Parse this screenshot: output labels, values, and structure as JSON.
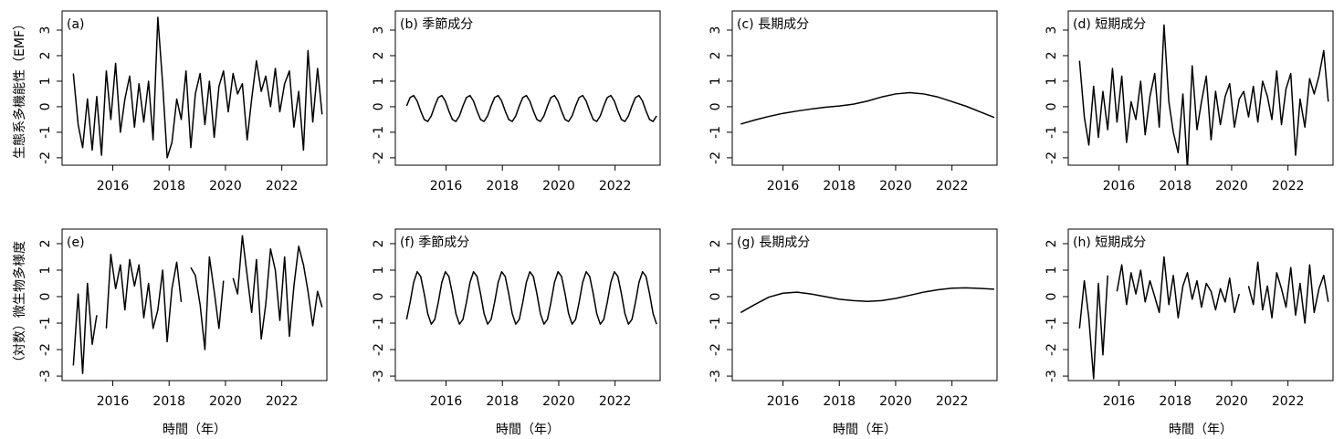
{
  "chart_data": [
    {
      "type": "line",
      "title": "(a)",
      "ylabel": "生態系多機能性（EMF）",
      "x": [
        2014.6,
        2014.77,
        2014.93,
        2015.1,
        2015.27,
        2015.43,
        2015.6,
        2015.77,
        2015.93,
        2016.1,
        2016.27,
        2016.43,
        2016.6,
        2016.77,
        2016.93,
        2017.1,
        2017.27,
        2017.43,
        2017.6,
        2017.77,
        2017.93,
        2018.1,
        2018.27,
        2018.43,
        2018.6,
        2018.77,
        2018.93,
        2019.1,
        2019.27,
        2019.43,
        2019.6,
        2019.77,
        2019.93,
        2020.1,
        2020.27,
        2020.43,
        2020.6,
        2020.77,
        2020.93,
        2021.1,
        2021.27,
        2021.43,
        2021.6,
        2021.77,
        2021.93,
        2022.1,
        2022.27,
        2022.43,
        2022.6,
        2022.77,
        2022.93,
        2023.1,
        2023.27,
        2023.43
      ],
      "values": [
        1.3,
        -0.7,
        -1.6,
        0.3,
        -1.7,
        0.4,
        -1.9,
        1.4,
        -0.5,
        1.7,
        -1.0,
        0.3,
        1.2,
        -0.8,
        0.9,
        -0.6,
        1.0,
        -1.3,
        3.5,
        0.9,
        -2.0,
        -1.4,
        0.3,
        -0.5,
        1.4,
        -1.6,
        0.5,
        1.3,
        -0.7,
        1.0,
        -1.2,
        0.8,
        1.4,
        -0.2,
        1.3,
        0.5,
        0.9,
        -1.3,
        0.3,
        1.8,
        0.6,
        1.2,
        0.0,
        1.5,
        -0.2,
        0.9,
        1.4,
        -0.8,
        0.6,
        -1.7,
        2.2,
        -0.6,
        1.5,
        -0.3
      ],
      "color": "#000000",
      "xlim": [
        2014.2,
        2023.6
      ],
      "ylim": [
        -2.29,
        3.75
      ],
      "xticks": [
        2016,
        2018,
        2020,
        2022
      ],
      "yticks": [
        -2,
        -1,
        0,
        1,
        2,
        3
      ]
    },
    {
      "type": "line",
      "title": "(b) 季節成分",
      "x": [
        2014.6,
        2014.725,
        2014.85,
        2014.975,
        2015.1,
        2015.225,
        2015.35,
        2015.475,
        2015.6,
        2015.725,
        2015.85,
        2015.975,
        2016.1,
        2016.225,
        2016.35,
        2016.475,
        2016.6,
        2016.725,
        2016.85,
        2016.975,
        2017.1,
        2017.225,
        2017.35,
        2017.475,
        2017.6,
        2017.725,
        2017.85,
        2017.975,
        2018.1,
        2018.225,
        2018.35,
        2018.475,
        2018.6,
        2018.725,
        2018.85,
        2018.975,
        2019.1,
        2019.225,
        2019.35,
        2019.475,
        2019.6,
        2019.725,
        2019.85,
        2019.975,
        2020.1,
        2020.225,
        2020.35,
        2020.475,
        2020.6,
        2020.725,
        2020.85,
        2020.975,
        2021.1,
        2021.225,
        2021.35,
        2021.475,
        2021.6,
        2021.725,
        2021.85,
        2021.975,
        2022.1,
        2022.225,
        2022.35,
        2022.475,
        2022.6,
        2022.725,
        2022.85,
        2022.975,
        2023.1,
        2023.225,
        2023.35,
        2023.475
      ],
      "values": [
        0.03,
        0.36,
        0.44,
        0.22,
        -0.17,
        -0.5,
        -0.58,
        -0.36,
        0.03,
        0.36,
        0.44,
        0.22,
        -0.17,
        -0.5,
        -0.58,
        -0.36,
        0.03,
        0.36,
        0.44,
        0.22,
        -0.17,
        -0.5,
        -0.58,
        -0.36,
        0.03,
        0.36,
        0.44,
        0.22,
        -0.17,
        -0.5,
        -0.58,
        -0.36,
        0.03,
        0.36,
        0.44,
        0.22,
        -0.17,
        -0.5,
        -0.58,
        -0.36,
        0.03,
        0.36,
        0.44,
        0.22,
        -0.17,
        -0.5,
        -0.58,
        -0.36,
        0.03,
        0.36,
        0.44,
        0.22,
        -0.17,
        -0.5,
        -0.58,
        -0.36,
        0.03,
        0.36,
        0.44,
        0.22,
        -0.17,
        -0.5,
        -0.58,
        -0.36,
        0.03,
        0.36,
        0.44,
        0.22,
        -0.17,
        -0.5,
        -0.58,
        -0.36
      ],
      "color": "#000000",
      "xlim": [
        2014.2,
        2023.6
      ],
      "ylim": [
        -2.29,
        3.75
      ],
      "xticks": [
        2016,
        2018,
        2020,
        2022
      ],
      "yticks": [
        -2,
        -1,
        0,
        1,
        2,
        3
      ]
    },
    {
      "type": "line",
      "title": "(c) 長期成分",
      "x": [
        2014.5,
        2015,
        2015.5,
        2016,
        2016.5,
        2017,
        2017.5,
        2018,
        2018.5,
        2019,
        2019.5,
        2020,
        2020.5,
        2021,
        2021.5,
        2022,
        2022.5,
        2023,
        2023.5
      ],
      "values": [
        -0.68,
        -0.52,
        -0.38,
        -0.26,
        -0.17,
        -0.09,
        -0.02,
        0.03,
        0.1,
        0.22,
        0.38,
        0.5,
        0.55,
        0.5,
        0.38,
        0.2,
        0.02,
        -0.2,
        -0.42
      ],
      "color": "#000000",
      "xlim": [
        2014.2,
        2023.6
      ],
      "ylim": [
        -2.29,
        3.75
      ],
      "xticks": [
        2016,
        2018,
        2020,
        2022
      ],
      "yticks": [
        -2,
        -1,
        0,
        1,
        2,
        3
      ]
    },
    {
      "type": "line",
      "title": "(d) 短期成分",
      "x": [
        2014.6,
        2014.77,
        2014.93,
        2015.1,
        2015.27,
        2015.43,
        2015.6,
        2015.77,
        2015.93,
        2016.1,
        2016.27,
        2016.43,
        2016.6,
        2016.77,
        2016.93,
        2017.1,
        2017.27,
        2017.43,
        2017.6,
        2017.77,
        2017.93,
        2018.1,
        2018.27,
        2018.43,
        2018.6,
        2018.77,
        2018.93,
        2019.1,
        2019.27,
        2019.43,
        2019.6,
        2019.77,
        2019.93,
        2020.1,
        2020.27,
        2020.43,
        2020.6,
        2020.77,
        2020.93,
        2021.1,
        2021.27,
        2021.43,
        2021.6,
        2021.77,
        2021.93,
        2022.1,
        2022.27,
        2022.43,
        2022.6,
        2022.77,
        2022.93,
        2023.1,
        2023.27,
        2023.43
      ],
      "values": [
        1.8,
        -0.4,
        -1.5,
        0.8,
        -1.2,
        0.6,
        -0.9,
        1.5,
        -0.6,
        1.2,
        -1.4,
        0.2,
        -0.5,
        1.0,
        -1.1,
        0.4,
        1.3,
        -0.8,
        3.2,
        0.2,
        -1.0,
        -1.8,
        0.5,
        -2.4,
        1.6,
        -0.9,
        0.2,
        1.2,
        -1.3,
        0.6,
        -0.7,
        0.4,
        0.9,
        -0.8,
        0.3,
        0.6,
        -0.4,
        0.8,
        -0.6,
        1.0,
        0.4,
        -0.5,
        1.4,
        -0.7,
        0.7,
        1.3,
        -1.9,
        0.3,
        -0.8,
        1.1,
        0.5,
        1.2,
        2.2,
        0.2
      ],
      "color": "#000000",
      "xlim": [
        2014.2,
        2023.6
      ],
      "ylim": [
        -2.29,
        3.75
      ],
      "xticks": [
        2016,
        2018,
        2020,
        2022
      ],
      "yticks": [
        -2,
        -1,
        0,
        1,
        2,
        3
      ]
    },
    {
      "type": "line",
      "title": "(e)",
      "ylabel": "（対数）微生物多様度",
      "xlabel": "時間（年）",
      "x": [
        2014.6,
        2014.77,
        2014.93,
        2015.1,
        2015.27,
        2015.43,
        2015.6,
        2015.77,
        2015.93,
        2016.1,
        2016.27,
        2016.43,
        2016.6,
        2016.77,
        2016.93,
        2017.1,
        2017.27,
        2017.43,
        2017.6,
        2017.77,
        2017.93,
        2018.1,
        2018.27,
        2018.43,
        2018.6,
        2018.77,
        2018.93,
        2019.1,
        2019.27,
        2019.43,
        2019.6,
        2019.77,
        2019.93,
        2020.1,
        2020.27,
        2020.43,
        2020.6,
        2020.77,
        2020.93,
        2021.1,
        2021.27,
        2021.43,
        2021.6,
        2021.77,
        2021.93,
        2022.1,
        2022.27,
        2022.43,
        2022.6,
        2022.77,
        2022.93,
        2023.1,
        2023.27,
        2023.43
      ],
      "values": [
        -2.6,
        0.1,
        -2.9,
        0.5,
        -1.8,
        -0.7,
        null,
        -1.2,
        1.6,
        0.3,
        1.2,
        -0.5,
        1.4,
        0.4,
        1.2,
        -0.8,
        0.5,
        -1.2,
        -0.5,
        1.0,
        -1.7,
        0.3,
        1.3,
        -0.2,
        null,
        1.1,
        0.8,
        -0.3,
        -2.0,
        1.5,
        0.2,
        -1.2,
        0.6,
        null,
        0.7,
        0.1,
        2.3,
        0.8,
        -0.6,
        1.4,
        -1.6,
        -0.3,
        1.8,
        1.0,
        -0.9,
        1.5,
        -1.5,
        0.4,
        1.9,
        1.2,
        0.2,
        -1.1,
        0.2,
        -0.4
      ],
      "color": "#000000",
      "xlim": [
        2014.2,
        2023.6
      ],
      "ylim": [
        -3.17,
        2.55
      ],
      "xticks": [
        2016,
        2018,
        2020,
        2022
      ],
      "yticks": [
        -3,
        -2,
        -1,
        0,
        1,
        2
      ]
    },
    {
      "type": "line",
      "title": "(f) 季節成分",
      "xlabel": "時間（年）",
      "x": [
        2014.6,
        2014.725,
        2014.85,
        2014.975,
        2015.1,
        2015.225,
        2015.35,
        2015.475,
        2015.6,
        2015.725,
        2015.85,
        2015.975,
        2016.1,
        2016.225,
        2016.35,
        2016.475,
        2016.6,
        2016.725,
        2016.85,
        2016.975,
        2017.1,
        2017.225,
        2017.35,
        2017.475,
        2017.6,
        2017.725,
        2017.85,
        2017.975,
        2018.1,
        2018.225,
        2018.35,
        2018.475,
        2018.6,
        2018.725,
        2018.85,
        2018.975,
        2019.1,
        2019.225,
        2019.35,
        2019.475,
        2019.6,
        2019.725,
        2019.85,
        2019.975,
        2020.1,
        2020.225,
        2020.35,
        2020.475,
        2020.6,
        2020.725,
        2020.85,
        2020.975,
        2021.1,
        2021.225,
        2021.35,
        2021.475,
        2021.6,
        2021.725,
        2021.85,
        2021.975,
        2022.1,
        2022.225,
        2022.35,
        2022.475,
        2022.6,
        2022.725,
        2022.85,
        2022.975,
        2023.1,
        2023.225,
        2023.35,
        2023.475
      ],
      "values": [
        -0.86,
        -0.21,
        0.54,
        0.94,
        0.76,
        0.11,
        -0.64,
        -1.04,
        -0.86,
        -0.21,
        0.54,
        0.94,
        0.76,
        0.11,
        -0.64,
        -1.04,
        -0.86,
        -0.21,
        0.54,
        0.94,
        0.76,
        0.11,
        -0.64,
        -1.04,
        -0.86,
        -0.21,
        0.54,
        0.94,
        0.76,
        0.11,
        -0.64,
        -1.04,
        -0.86,
        -0.21,
        0.54,
        0.94,
        0.76,
        0.11,
        -0.64,
        -1.04,
        -0.86,
        -0.21,
        0.54,
        0.94,
        0.76,
        0.11,
        -0.64,
        -1.04,
        -0.86,
        -0.21,
        0.54,
        0.94,
        0.76,
        0.11,
        -0.64,
        -1.04,
        -0.86,
        -0.21,
        0.54,
        0.94,
        0.76,
        0.11,
        -0.64,
        -1.04,
        -0.86,
        -0.21,
        0.54,
        0.94,
        0.76,
        0.11,
        -0.64,
        -1.04
      ],
      "color": "#000000",
      "xlim": [
        2014.2,
        2023.6
      ],
      "ylim": [
        -3.17,
        2.55
      ],
      "xticks": [
        2016,
        2018,
        2020,
        2022
      ],
      "yticks": [
        -3,
        -2,
        -1,
        0,
        1,
        2
      ]
    },
    {
      "type": "line",
      "title": "(g) 長期成分",
      "xlabel": "時間（年）",
      "x": [
        2014.5,
        2015,
        2015.5,
        2016,
        2016.5,
        2017,
        2017.5,
        2018,
        2018.5,
        2019,
        2019.5,
        2020,
        2020.5,
        2021,
        2021.5,
        2022,
        2022.5,
        2023,
        2023.5
      ],
      "values": [
        -0.6,
        -0.3,
        -0.02,
        0.13,
        0.17,
        0.1,
        0.0,
        -0.1,
        -0.15,
        -0.18,
        -0.15,
        -0.07,
        0.05,
        0.17,
        0.26,
        0.32,
        0.33,
        0.31,
        0.28
      ],
      "color": "#000000",
      "xlim": [
        2014.2,
        2023.6
      ],
      "ylim": [
        -3.17,
        2.55
      ],
      "xticks": [
        2016,
        2018,
        2020,
        2022
      ],
      "yticks": [
        -3,
        -2,
        -1,
        0,
        1,
        2
      ]
    },
    {
      "type": "line",
      "title": "(h) 短期成分",
      "xlabel": "時間（年）",
      "x": [
        2014.6,
        2014.77,
        2014.93,
        2015.1,
        2015.27,
        2015.43,
        2015.6,
        2015.77,
        2015.93,
        2016.1,
        2016.27,
        2016.43,
        2016.6,
        2016.77,
        2016.93,
        2017.1,
        2017.27,
        2017.43,
        2017.6,
        2017.77,
        2017.93,
        2018.1,
        2018.27,
        2018.43,
        2018.6,
        2018.77,
        2018.93,
        2019.1,
        2019.27,
        2019.43,
        2019.6,
        2019.77,
        2019.93,
        2020.1,
        2020.27,
        2020.43,
        2020.6,
        2020.77,
        2020.93,
        2021.1,
        2021.27,
        2021.43,
        2021.6,
        2021.77,
        2021.93,
        2022.1,
        2022.27,
        2022.43,
        2022.6,
        2022.77,
        2022.93,
        2023.1,
        2023.27,
        2023.43
      ],
      "values": [
        -1.2,
        0.6,
        -0.8,
        -3.1,
        0.5,
        -2.2,
        0.8,
        null,
        0.2,
        1.2,
        -0.3,
        0.9,
        0.1,
        1.0,
        -0.2,
        0.6,
        0.0,
        -0.6,
        1.5,
        -0.3,
        0.8,
        -0.8,
        0.4,
        0.9,
        -0.1,
        0.6,
        -0.4,
        0.5,
        0.2,
        -0.5,
        0.3,
        -0.2,
        0.7,
        -0.6,
        0.1,
        null,
        0.4,
        -0.3,
        1.3,
        -0.5,
        0.4,
        -0.8,
        0.9,
        0.3,
        -0.4,
        1.1,
        -0.7,
        0.5,
        -1.0,
        1.2,
        -0.6,
        0.3,
        0.8,
        -0.2
      ],
      "color": "#000000",
      "xlim": [
        2014.2,
        2023.6
      ],
      "ylim": [
        -3.17,
        2.55
      ],
      "xticks": [
        2016,
        2018,
        2020,
        2022
      ],
      "yticks": [
        -3,
        -2,
        -1,
        0,
        1,
        2
      ]
    }
  ]
}
